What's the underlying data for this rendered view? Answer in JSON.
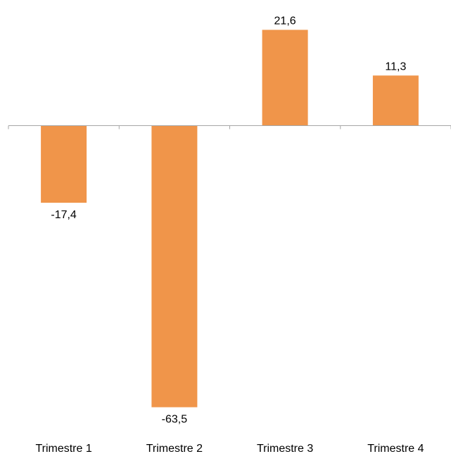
{
  "chart_data": {
    "type": "bar",
    "categories": [
      "Trimestre 1",
      "Trimestre 2",
      "Trimestre 3",
      "Trimestre 4"
    ],
    "values": [
      -17.4,
      -63.5,
      21.6,
      11.3
    ],
    "value_labels": [
      "-17,4",
      "-63,5",
      "21,6",
      "11,3"
    ],
    "title": "",
    "xlabel": "",
    "ylabel": "",
    "ylim": [
      -63.5,
      21.6
    ],
    "grid": false,
    "legend": "none",
    "bar_color": "#F0954A",
    "axis_color": "#A6A6A6"
  }
}
